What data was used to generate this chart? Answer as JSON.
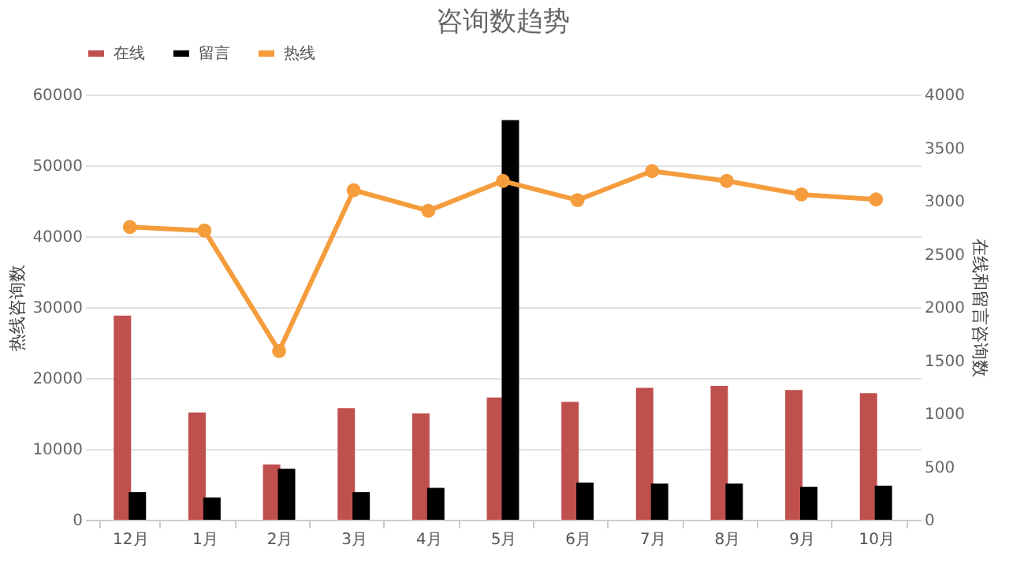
{
  "chart_data": {
    "type": "bar",
    "title": "咨询数趋势",
    "ylabel": "热线咨询数",
    "y2label": "在线和留言咨询数",
    "categories": [
      "12月",
      "1月",
      "2月",
      "3月",
      "4月",
      "5月",
      "6月",
      "7月",
      "8月",
      "9月",
      "10月"
    ],
    "series": [
      {
        "name": "在线",
        "axis": "y2",
        "color": "#c0504d",
        "values": [
          1920,
          1010,
          520,
          1050,
          1000,
          1150,
          1110,
          1240,
          1260,
          1220,
          1190
        ]
      },
      {
        "name": "留言",
        "axis": "y2",
        "color": "#000000",
        "values": [
          260,
          210,
          480,
          260,
          300,
          3760,
          350,
          340,
          340,
          310,
          320
        ]
      },
      {
        "name": "热线",
        "type": "line",
        "axis": "y",
        "color": "#f59d3d",
        "values": [
          41300,
          40800,
          23800,
          46500,
          43600,
          47800,
          45100,
          49200,
          47800,
          45900,
          45200
        ]
      }
    ],
    "ylim": [
      0,
      60000
    ],
    "yticks": [
      0,
      10000,
      20000,
      30000,
      40000,
      50000,
      60000
    ],
    "y2lim": [
      0,
      4000
    ],
    "y2ticks": [
      0,
      500,
      1000,
      1500,
      2000,
      2500,
      3000,
      3500,
      4000
    ],
    "grid": "y",
    "legend": "top",
    "marker": "circle",
    "line_style": "solid"
  }
}
